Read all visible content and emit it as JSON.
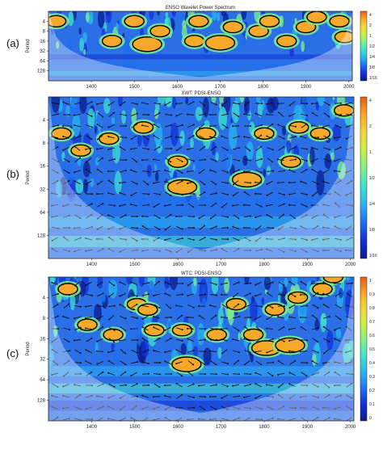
{
  "chart_data": [
    {
      "type": "heatmap",
      "panel_letter": "(a)",
      "title": "ENSO Wavelet Power Spectrum",
      "ylabel": "Period",
      "x_ticks": [
        "1400",
        "1500",
        "1600",
        "1700",
        "1800",
        "1900",
        "2000"
      ],
      "y_ticks": [
        "4",
        "8",
        "16",
        "32",
        "64",
        "128"
      ],
      "colorbar_ticks": [
        "4",
        "2",
        "1",
        "1/2",
        "1/4",
        "1/8",
        "1/16"
      ],
      "xlim": [
        1300,
        2008
      ],
      "ylim": [
        2,
        256
      ],
      "y_scale": "log2 (inverted)",
      "hot_spots": [
        {
          "x": 1318,
          "period": 4
        },
        {
          "x": 1448,
          "period": 16
        },
        {
          "x": 1500,
          "period": 4
        },
        {
          "x": 1530,
          "period": 20
        },
        {
          "x": 1560,
          "period": 8
        },
        {
          "x": 1640,
          "period": 16
        },
        {
          "x": 1650,
          "period": 4
        },
        {
          "x": 1700,
          "period": 18
        },
        {
          "x": 1730,
          "period": 6
        },
        {
          "x": 1790,
          "period": 8
        },
        {
          "x": 1815,
          "period": 4
        },
        {
          "x": 1855,
          "period": 16
        },
        {
          "x": 1900,
          "period": 6
        },
        {
          "x": 1925,
          "period": 3
        },
        {
          "x": 1978,
          "period": 4
        },
        {
          "x": 1990,
          "period": 12
        }
      ]
    },
    {
      "type": "heatmap",
      "panel_letter": "(b)",
      "title": "XWT: PDSI-ENSO",
      "ylabel": "Period",
      "x_ticks": [
        "1400",
        "1500",
        "1600",
        "1700",
        "1800",
        "1900",
        "2000"
      ],
      "y_ticks": [
        "4",
        "8",
        "16",
        "32",
        "64",
        "128"
      ],
      "colorbar_ticks": [
        "4",
        "2",
        "1",
        "1/2",
        "1/4",
        "1/8",
        "1/16"
      ],
      "xlim": [
        1300,
        2008
      ],
      "ylim": [
        2,
        256
      ],
      "y_scale": "log2 (inverted)",
      "hot_spots": [
        {
          "x": 1330,
          "period": 6
        },
        {
          "x": 1375,
          "period": 10
        },
        {
          "x": 1440,
          "period": 7
        },
        {
          "x": 1520,
          "period": 5
        },
        {
          "x": 1600,
          "period": 14
        },
        {
          "x": 1610,
          "period": 30
        },
        {
          "x": 1665,
          "period": 6
        },
        {
          "x": 1760,
          "period": 24
        },
        {
          "x": 1800,
          "period": 6
        },
        {
          "x": 1862,
          "period": 14
        },
        {
          "x": 1880,
          "period": 5
        },
        {
          "x": 1930,
          "period": 6
        },
        {
          "x": 1985,
          "period": 3
        }
      ]
    },
    {
      "type": "heatmap",
      "panel_letter": "(c)",
      "title": "WTC: PDSI-ENSO",
      "ylabel": "Period",
      "x_ticks": [
        "1400",
        "1500",
        "1600",
        "1700",
        "1800",
        "1900",
        "2000"
      ],
      "y_ticks": [
        "4",
        "8",
        "16",
        "32",
        "64",
        "128"
      ],
      "colorbar_ticks": [
        "1",
        "0.9",
        "0.8",
        "0.7",
        "0.6",
        "0.5",
        "0.4",
        "0.3",
        "0.2",
        "0.1",
        "0"
      ],
      "xlim": [
        1300,
        2008
      ],
      "ylim": [
        2,
        256
      ],
      "y_scale": "log2 (inverted)",
      "hot_spots": [
        {
          "x": 1345,
          "period": 3
        },
        {
          "x": 1390,
          "period": 10
        },
        {
          "x": 1450,
          "period": 14
        },
        {
          "x": 1505,
          "period": 5
        },
        {
          "x": 1530,
          "period": 6
        },
        {
          "x": 1545,
          "period": 12
        },
        {
          "x": 1610,
          "period": 12
        },
        {
          "x": 1620,
          "period": 38
        },
        {
          "x": 1690,
          "period": 14
        },
        {
          "x": 1735,
          "period": 5
        },
        {
          "x": 1775,
          "period": 14
        },
        {
          "x": 1805,
          "period": 22
        },
        {
          "x": 1825,
          "period": 6
        },
        {
          "x": 1860,
          "period": 20
        },
        {
          "x": 1878,
          "period": 4
        },
        {
          "x": 1935,
          "period": 3
        },
        {
          "x": 1960,
          "period": 2
        }
      ]
    }
  ]
}
